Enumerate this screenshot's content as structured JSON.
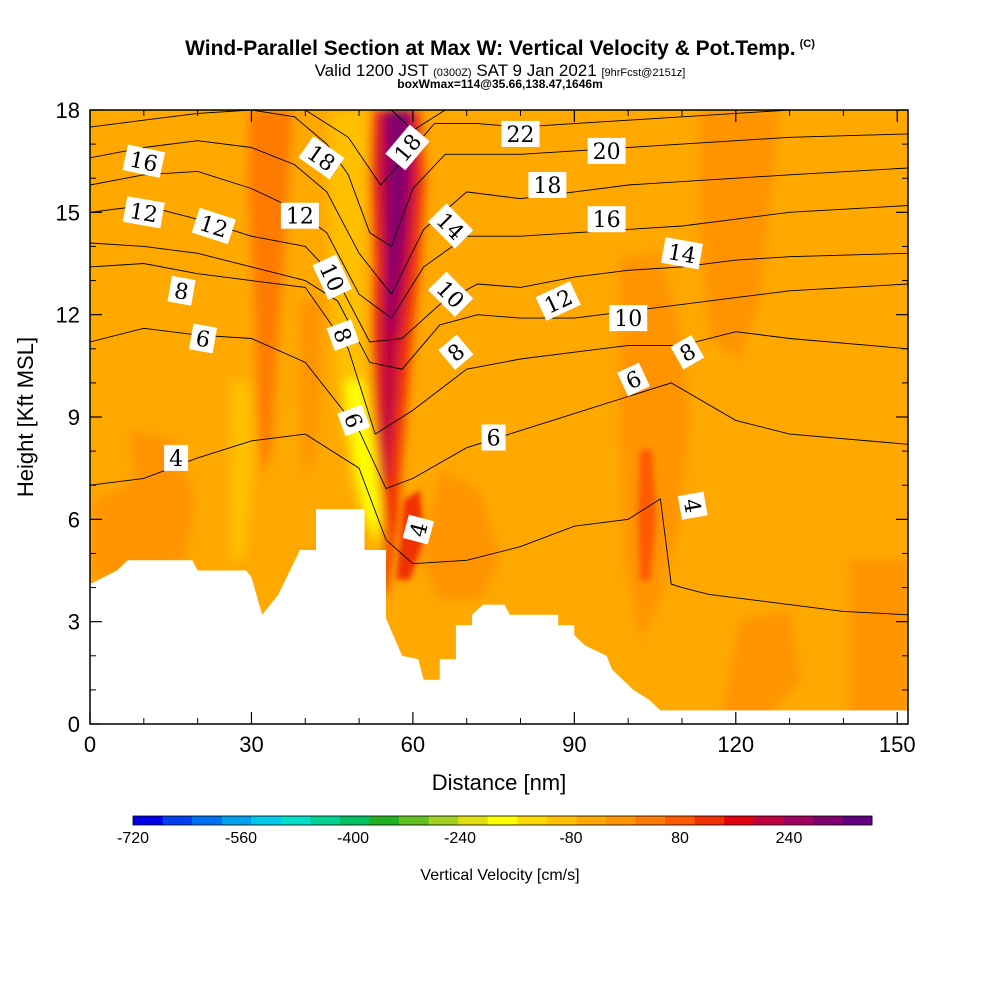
{
  "header": {
    "title": "Wind-Parallel Section at Max W: Vertical Velocity & Pot.Temp.",
    "copyright": "(C)",
    "valid_main": "Valid 1200 JST",
    "valid_utc": "(0300Z)",
    "valid_date": "SAT 9 Jan 2021",
    "forecast": "[9hrFcst@2151z]",
    "box_info": "boxWmax=114@35.66,138.47,1646m"
  },
  "chart_data": {
    "type": "heatmap",
    "xlabel": "Distance [nm]",
    "ylabel": "Height [Kft MSL]",
    "xlim": [
      0,
      152
    ],
    "ylim": [
      0,
      18
    ],
    "x_ticks": [
      0,
      30,
      60,
      90,
      120,
      150
    ],
    "y_ticks": [
      0,
      3,
      6,
      9,
      12,
      15,
      18
    ],
    "colorbar": {
      "label": "Vertical Velocity [cm/s]",
      "tick_labels": [
        "-720",
        "-560",
        "-400",
        "-240",
        "-80",
        "80",
        "240"
      ],
      "colors": [
        "#0000e8",
        "#0040f0",
        "#0070f0",
        "#00a0f0",
        "#00c8e8",
        "#00e0c8",
        "#00d090",
        "#00c060",
        "#20b020",
        "#60c020",
        "#a0d020",
        "#e0e010",
        "#ffff00",
        "#ffd800",
        "#ffc000",
        "#ffa800",
        "#ff9400",
        "#ff7a00",
        "#ff5a00",
        "#f03000",
        "#e00010",
        "#c00040",
        "#a00060",
        "#800070",
        "#600080"
      ]
    },
    "terrain_profile": [
      [
        0,
        4.1
      ],
      [
        5,
        4.5
      ],
      [
        7,
        4.8
      ],
      [
        19,
        4.8
      ],
      [
        20,
        4.5
      ],
      [
        29,
        4.5
      ],
      [
        30,
        4.3
      ],
      [
        32,
        3.2
      ],
      [
        35,
        3.8
      ],
      [
        39,
        5.1
      ],
      [
        42,
        5.1
      ],
      [
        42,
        6.3
      ],
      [
        51,
        6.3
      ],
      [
        51,
        5.1
      ],
      [
        55,
        5.1
      ],
      [
        55,
        3.1
      ],
      [
        58,
        2.0
      ],
      [
        61,
        1.9
      ],
      [
        62,
        1.3
      ],
      [
        65,
        1.3
      ],
      [
        65,
        1.9
      ],
      [
        68,
        1.9
      ],
      [
        68,
        2.9
      ],
      [
        71,
        2.9
      ],
      [
        71,
        3.2
      ],
      [
        73,
        3.5
      ],
      [
        77,
        3.5
      ],
      [
        78,
        3.2
      ],
      [
        87,
        3.2
      ],
      [
        87,
        2.9
      ],
      [
        90,
        2.9
      ],
      [
        90,
        2.6
      ],
      [
        92,
        2.3
      ],
      [
        96,
        2.0
      ],
      [
        97,
        1.6
      ],
      [
        99,
        1.3
      ],
      [
        101,
        1.0
      ],
      [
        104,
        0.7
      ],
      [
        106,
        0.4
      ],
      [
        108,
        0.4
      ],
      [
        114,
        0.4
      ],
      [
        152,
        0.4
      ]
    ],
    "theta_contours": [
      {
        "label": "4",
        "points": [
          [
            0,
            7.0
          ],
          [
            10,
            7.2
          ],
          [
            20,
            7.8
          ],
          [
            30,
            8.3
          ],
          [
            40,
            8.5
          ],
          [
            50,
            7.5
          ],
          [
            55,
            5.4
          ],
          [
            60,
            4.7
          ],
          [
            70,
            4.8
          ],
          [
            80,
            5.2
          ],
          [
            90,
            5.8
          ],
          [
            100,
            6.0
          ],
          [
            106,
            6.6
          ],
          [
            108,
            4.1
          ],
          [
            110,
            4.0
          ],
          [
            115,
            3.8
          ],
          [
            125,
            3.6
          ],
          [
            140,
            3.3
          ],
          [
            152,
            3.2
          ]
        ]
      },
      {
        "label": "6",
        "points": [
          [
            0,
            11.2
          ],
          [
            10,
            11.6
          ],
          [
            20,
            11.4
          ],
          [
            30,
            11.3
          ],
          [
            40,
            10.6
          ],
          [
            50,
            8.6
          ],
          [
            55,
            6.9
          ],
          [
            60,
            7.2
          ],
          [
            70,
            8.1
          ],
          [
            80,
            8.6
          ],
          [
            90,
            9.1
          ],
          [
            100,
            9.6
          ],
          [
            108,
            10.0
          ],
          [
            120,
            8.9
          ],
          [
            130,
            8.5
          ],
          [
            152,
            8.2
          ]
        ]
      },
      {
        "label": "8",
        "points": [
          [
            0,
            13.4
          ],
          [
            10,
            13.5
          ],
          [
            20,
            13.2
          ],
          [
            30,
            13.0
          ],
          [
            40,
            12.8
          ],
          [
            48,
            11.0
          ],
          [
            53,
            8.5
          ],
          [
            60,
            9.2
          ],
          [
            70,
            10.4
          ],
          [
            80,
            10.7
          ],
          [
            90,
            10.9
          ],
          [
            100,
            11.1
          ],
          [
            110,
            11.1
          ],
          [
            120,
            11.5
          ],
          [
            130,
            11.3
          ],
          [
            152,
            11.0
          ]
        ]
      },
      {
        "label": "10",
        "points": [
          [
            0,
            14.1
          ],
          [
            10,
            14.0
          ],
          [
            20,
            13.8
          ],
          [
            30,
            13.4
          ],
          [
            40,
            13.0
          ],
          [
            46,
            12.4
          ],
          [
            52,
            10.6
          ],
          [
            58,
            10.4
          ],
          [
            65,
            11.7
          ],
          [
            72,
            12.0
          ],
          [
            80,
            11.9
          ],
          [
            90,
            11.9
          ],
          [
            100,
            12.1
          ],
          [
            110,
            12.3
          ],
          [
            120,
            12.5
          ],
          [
            130,
            12.7
          ],
          [
            152,
            12.9
          ]
        ]
      },
      {
        "label": "12",
        "points": [
          [
            0,
            15.0
          ],
          [
            10,
            15.2
          ],
          [
            20,
            14.8
          ],
          [
            30,
            14.3
          ],
          [
            40,
            14.0
          ],
          [
            46,
            13.0
          ],
          [
            52,
            11.2
          ],
          [
            58,
            11.3
          ],
          [
            65,
            12.3
          ],
          [
            72,
            12.9
          ],
          [
            80,
            12.8
          ],
          [
            90,
            13.1
          ],
          [
            100,
            13.3
          ],
          [
            110,
            13.4
          ],
          [
            120,
            13.6
          ],
          [
            130,
            13.7
          ],
          [
            152,
            13.8
          ]
        ]
      },
      {
        "label": "14",
        "points": [
          [
            0,
            15.8
          ],
          [
            10,
            16.1
          ],
          [
            20,
            16.2
          ],
          [
            30,
            15.7
          ],
          [
            38,
            15.1
          ],
          [
            44,
            14.4
          ],
          [
            50,
            12.6
          ],
          [
            56,
            11.9
          ],
          [
            62,
            13.4
          ],
          [
            70,
            14.3
          ],
          [
            80,
            14.3
          ],
          [
            90,
            14.4
          ],
          [
            100,
            14.5
          ],
          [
            110,
            14.6
          ],
          [
            120,
            14.8
          ],
          [
            130,
            15.0
          ],
          [
            152,
            15.2
          ]
        ]
      },
      {
        "label": "16",
        "points": [
          [
            0,
            16.6
          ],
          [
            10,
            16.9
          ],
          [
            20,
            17.1
          ],
          [
            30,
            16.9
          ],
          [
            38,
            16.4
          ],
          [
            44,
            15.6
          ],
          [
            50,
            13.8
          ],
          [
            56,
            12.6
          ],
          [
            62,
            14.5
          ],
          [
            70,
            15.6
          ],
          [
            80,
            15.4
          ],
          [
            90,
            15.6
          ],
          [
            100,
            15.8
          ],
          [
            110,
            15.9
          ],
          [
            120,
            16.0
          ],
          [
            130,
            16.1
          ],
          [
            152,
            16.3
          ]
        ]
      },
      {
        "label": "18",
        "points": [
          [
            0,
            17.5
          ],
          [
            10,
            17.7
          ],
          [
            20,
            17.9
          ],
          [
            30,
            18.0
          ],
          [
            38,
            17.8
          ],
          [
            44,
            17.0
          ],
          [
            48,
            16.1
          ],
          [
            52,
            14.4
          ],
          [
            56,
            14.0
          ],
          [
            60,
            15.7
          ],
          [
            66,
            16.7
          ],
          [
            74,
            16.7
          ],
          [
            80,
            16.7
          ],
          [
            90,
            16.8
          ],
          [
            100,
            16.9
          ],
          [
            110,
            17.0
          ],
          [
            120,
            17.1
          ],
          [
            130,
            17.2
          ],
          [
            152,
            17.3
          ]
        ]
      },
      {
        "label": "20",
        "points": [
          [
            40,
            18.0
          ],
          [
            48,
            17.2
          ],
          [
            54,
            15.8
          ],
          [
            58,
            16.5
          ],
          [
            64,
            17.6
          ],
          [
            72,
            17.6
          ],
          [
            80,
            17.5
          ],
          [
            90,
            17.6
          ],
          [
            100,
            17.7
          ],
          [
            110,
            17.8
          ],
          [
            120,
            17.9
          ],
          [
            130,
            18.0
          ]
        ]
      },
      {
        "label": "22",
        "points": [
          [
            56,
            18.0
          ],
          [
            60,
            17.4
          ],
          [
            66,
            18.0
          ]
        ]
      }
    ],
    "contour_labels": [
      {
        "text": "16",
        "x": 10,
        "y": 16.5,
        "angle": 12
      },
      {
        "text": "12",
        "x": 10,
        "y": 15.0,
        "angle": 10
      },
      {
        "text": "12",
        "x": 23,
        "y": 14.6,
        "angle": 18
      },
      {
        "text": "12",
        "x": 39,
        "y": 14.9,
        "angle": 0
      },
      {
        "text": "18",
        "x": 43,
        "y": 16.6,
        "angle": 35
      },
      {
        "text": "18",
        "x": 59,
        "y": 16.9,
        "angle": -50
      },
      {
        "text": "22",
        "x": 80,
        "y": 17.3,
        "angle": 0
      },
      {
        "text": "20",
        "x": 96,
        "y": 16.8,
        "angle": 0
      },
      {
        "text": "18",
        "x": 85,
        "y": 15.8,
        "angle": 0
      },
      {
        "text": "16",
        "x": 96,
        "y": 14.8,
        "angle": 0
      },
      {
        "text": "14",
        "x": 110,
        "y": 13.8,
        "angle": 10
      },
      {
        "text": "14",
        "x": 67,
        "y": 14.6,
        "angle": 45
      },
      {
        "text": "12",
        "x": 87,
        "y": 12.4,
        "angle": -25
      },
      {
        "text": "10",
        "x": 100,
        "y": 11.9,
        "angle": 0
      },
      {
        "text": "10",
        "x": 67,
        "y": 12.6,
        "angle": 45
      },
      {
        "text": "10",
        "x": 45,
        "y": 13.1,
        "angle": 65
      },
      {
        "text": "8",
        "x": 17,
        "y": 12.7,
        "angle": 10
      },
      {
        "text": "8",
        "x": 47,
        "y": 11.4,
        "angle": 70
      },
      {
        "text": "8",
        "x": 68,
        "y": 10.9,
        "angle": -40
      },
      {
        "text": "8",
        "x": 111,
        "y": 10.9,
        "angle": -30
      },
      {
        "text": "6",
        "x": 21,
        "y": 11.3,
        "angle": 10
      },
      {
        "text": "6",
        "x": 49,
        "y": 8.9,
        "angle": 70
      },
      {
        "text": "6",
        "x": 75,
        "y": 8.4,
        "angle": 0
      },
      {
        "text": "6",
        "x": 101,
        "y": 10.1,
        "angle": -25
      },
      {
        "text": "4",
        "x": 16,
        "y": 7.8,
        "angle": 0
      },
      {
        "text": "4",
        "x": 61,
        "y": 5.7,
        "angle": -75
      },
      {
        "text": "4",
        "x": 112,
        "y": 6.4,
        "angle": 80
      }
    ]
  }
}
